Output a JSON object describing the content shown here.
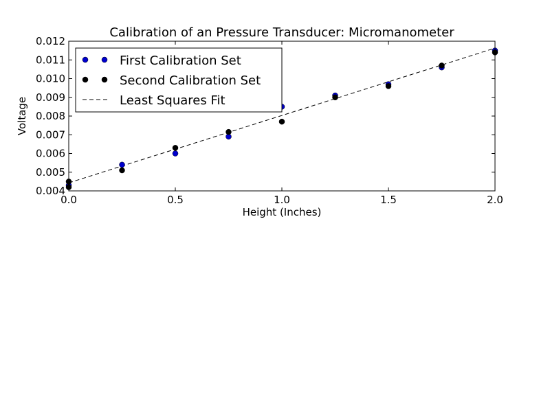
{
  "chart_data": {
    "type": "scatter",
    "title": "Calibration of an Pressure Transducer: Micromanometer",
    "xlabel": "Height (Inches)",
    "ylabel": "Voltage",
    "xlim": [
      0.0,
      2.0
    ],
    "ylim": [
      0.004,
      0.012
    ],
    "xticks": [
      "0.0",
      "0.5",
      "1.0",
      "1.5",
      "2.0"
    ],
    "yticks": [
      "0.004",
      "0.005",
      "0.006",
      "0.007",
      "0.008",
      "0.009",
      "0.010",
      "0.011",
      "0.012"
    ],
    "legend_position": "top-left",
    "series": [
      {
        "name": "First Calibration Set",
        "style": "markers",
        "color": "#0000cc",
        "x": [
          0.0,
          0.25,
          0.5,
          0.75,
          1.0,
          1.25,
          1.5,
          1.75,
          2.0
        ],
        "y": [
          0.0043,
          0.0054,
          0.006,
          0.0069,
          0.0085,
          0.0091,
          0.0097,
          0.0106,
          0.0115
        ]
      },
      {
        "name": "Second Calibration Set",
        "style": "markers",
        "color": "#000000",
        "x": [
          0.0,
          0.0,
          0.25,
          0.5,
          0.75,
          1.0,
          1.25,
          1.5,
          1.75,
          2.0
        ],
        "y": [
          0.0045,
          0.0042,
          0.0051,
          0.0063,
          0.00715,
          0.0077,
          0.009,
          0.0096,
          0.0107,
          0.0114
        ]
      },
      {
        "name": "Least Squares Fit",
        "style": "dashed-line",
        "color": "#000000",
        "x": [
          0.0,
          2.0
        ],
        "y": [
          0.00443,
          0.01163
        ]
      }
    ]
  }
}
